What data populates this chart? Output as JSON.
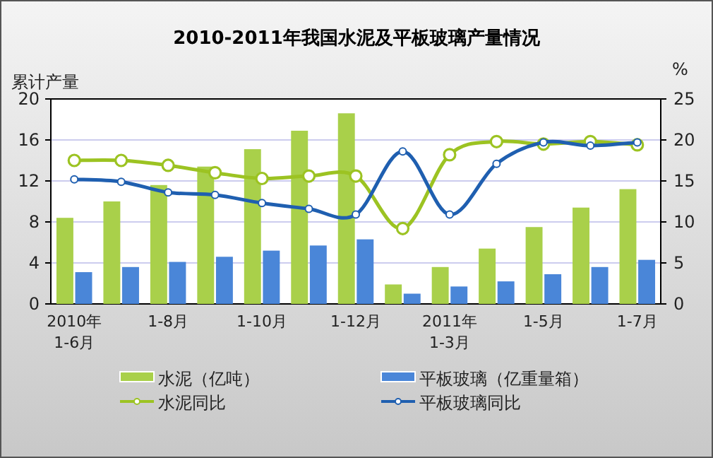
{
  "chart_data": {
    "type": "bar",
    "title": "2010-2011年我国水泥及平板玻璃产量情况",
    "ylabel": "累计产量",
    "y2label": "%",
    "categories": [
      "2010年\n1-6月",
      null,
      "1-8月",
      null,
      "1-10月",
      null,
      "1-12月",
      null,
      "2011年\n1-3月",
      null,
      "1-5月",
      null,
      "1-7月"
    ],
    "series": [
      {
        "name": "水泥（亿吨）",
        "color": "#a9d04a",
        "values": [
          8.4,
          10.0,
          11.6,
          13.4,
          15.1,
          16.9,
          18.6,
          1.9,
          3.6,
          5.4,
          7.5,
          9.4,
          11.2
        ]
      },
      {
        "name": "平板玻璃（亿重量箱）",
        "color": "#4a86d8",
        "values": [
          3.1,
          3.6,
          4.1,
          4.6,
          5.2,
          5.7,
          6.3,
          1.0,
          1.7,
          2.2,
          2.9,
          3.6,
          4.3
        ]
      },
      {
        "name": "水泥同比",
        "type": "line",
        "axis": "y2",
        "color": "#9cc322",
        "values": [
          17.5,
          17.5,
          16.9,
          16.0,
          15.3,
          15.6,
          15.6,
          9.2,
          18.2,
          19.8,
          19.5,
          19.8,
          19.4
        ]
      },
      {
        "name": "平板玻璃同比",
        "type": "line",
        "axis": "y2",
        "color": "#1f5fb0",
        "values": [
          15.2,
          14.9,
          13.6,
          13.3,
          12.3,
          11.6,
          10.9,
          18.6,
          10.9,
          17.1,
          19.7,
          19.3,
          19.7
        ]
      }
    ],
    "ylim": [
      0,
      20
    ],
    "yticks": [
      0,
      4,
      8,
      12,
      16,
      20
    ],
    "y2lim": [
      0,
      25
    ],
    "y2ticks": [
      0,
      5,
      10,
      15,
      20,
      25
    ],
    "grid": "y",
    "legend": "bottom",
    "marker": "circle",
    "line_style": "solid"
  }
}
